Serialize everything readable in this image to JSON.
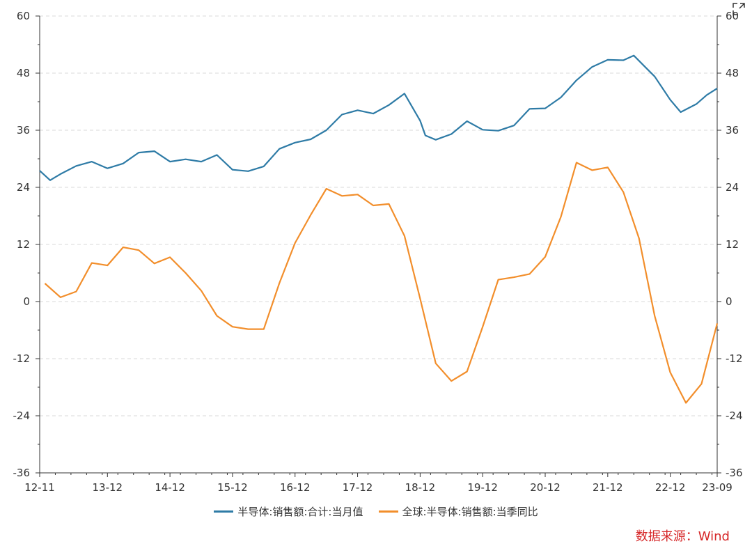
{
  "chart_data": {
    "type": "line",
    "x_labels": [
      "12-11",
      "13-12",
      "14-12",
      "15-12",
      "16-12",
      "17-12",
      "18-12",
      "19-12",
      "20-12",
      "21-12",
      "22-12",
      "23-09"
    ],
    "ylim": [
      -36,
      60
    ],
    "yticks": [
      -36,
      -24,
      -12,
      0,
      12,
      24,
      36,
      48,
      60
    ],
    "grid": true,
    "legend_position": "bottom",
    "series": [
      {
        "name": "半导体:销售额:合计:当月值",
        "color": "#2e7ba6",
        "points": [
          [
            "2012-11",
            27.5
          ],
          [
            "2013-01",
            25.5
          ],
          [
            "2013-03",
            26.8
          ],
          [
            "2013-06",
            28.5
          ],
          [
            "2013-09",
            29.4
          ],
          [
            "2013-12",
            28.0
          ],
          [
            "2014-03",
            29.0
          ],
          [
            "2014-06",
            31.3
          ],
          [
            "2014-09",
            31.6
          ],
          [
            "2014-12",
            29.4
          ],
          [
            "2015-03",
            29.9
          ],
          [
            "2015-06",
            29.4
          ],
          [
            "2015-09",
            30.8
          ],
          [
            "2015-12",
            27.7
          ],
          [
            "2016-03",
            27.4
          ],
          [
            "2016-06",
            28.4
          ],
          [
            "2016-09",
            32.1
          ],
          [
            "2016-12",
            33.4
          ],
          [
            "2017-03",
            34.1
          ],
          [
            "2017-06",
            36.0
          ],
          [
            "2017-09",
            39.3
          ],
          [
            "2017-12",
            40.2
          ],
          [
            "2018-03",
            39.5
          ],
          [
            "2018-06",
            41.3
          ],
          [
            "2018-09",
            43.7
          ],
          [
            "2018-12",
            38.0
          ],
          [
            "2019-01",
            34.9
          ],
          [
            "2019-03",
            34.0
          ],
          [
            "2019-06",
            35.2
          ],
          [
            "2019-09",
            37.9
          ],
          [
            "2019-12",
            36.1
          ],
          [
            "2020-03",
            35.9
          ],
          [
            "2020-06",
            37.0
          ],
          [
            "2020-09",
            40.5
          ],
          [
            "2020-12",
            40.6
          ],
          [
            "2021-03",
            42.9
          ],
          [
            "2021-06",
            46.5
          ],
          [
            "2021-09",
            49.3
          ],
          [
            "2021-12",
            50.8
          ],
          [
            "2022-03",
            50.7
          ],
          [
            "2022-05",
            51.7
          ],
          [
            "2022-07",
            49.5
          ],
          [
            "2022-09",
            47.3
          ],
          [
            "2022-12",
            42.4
          ],
          [
            "2023-02",
            39.8
          ],
          [
            "2023-05",
            41.5
          ],
          [
            "2023-07",
            43.4
          ],
          [
            "2023-09",
            44.8
          ]
        ]
      },
      {
        "name": "全球:半导体:销售额:当季同比",
        "color": "#f28e2b",
        "points": [
          [
            "2012-12",
            3.8
          ],
          [
            "2013-03",
            0.9
          ],
          [
            "2013-06",
            2.1
          ],
          [
            "2013-09",
            8.1
          ],
          [
            "2013-12",
            7.6
          ],
          [
            "2014-03",
            11.4
          ],
          [
            "2014-06",
            10.8
          ],
          [
            "2014-09",
            8.0
          ],
          [
            "2014-12",
            9.3
          ],
          [
            "2015-03",
            6.0
          ],
          [
            "2015-06",
            2.3
          ],
          [
            "2015-09",
            -3.0
          ],
          [
            "2015-12",
            -5.3
          ],
          [
            "2016-03",
            -5.8
          ],
          [
            "2016-06",
            -5.8
          ],
          [
            "2016-09",
            3.9
          ],
          [
            "2016-12",
            12.3
          ],
          [
            "2017-03",
            18.2
          ],
          [
            "2017-06",
            23.7
          ],
          [
            "2017-09",
            22.2
          ],
          [
            "2017-12",
            22.5
          ],
          [
            "2018-03",
            20.2
          ],
          [
            "2018-06",
            20.5
          ],
          [
            "2018-09",
            13.8
          ],
          [
            "2018-12",
            0.6
          ],
          [
            "2019-03",
            -13.0
          ],
          [
            "2019-06",
            -16.7
          ],
          [
            "2019-09",
            -14.7
          ],
          [
            "2019-12",
            -5.3
          ],
          [
            "2020-03",
            4.6
          ],
          [
            "2020-06",
            5.1
          ],
          [
            "2020-09",
            5.8
          ],
          [
            "2020-12",
            9.4
          ],
          [
            "2021-03",
            17.8
          ],
          [
            "2021-06",
            29.2
          ],
          [
            "2021-09",
            27.6
          ],
          [
            "2021-12",
            28.2
          ],
          [
            "2022-03",
            23.0
          ],
          [
            "2022-06",
            13.3
          ],
          [
            "2022-09",
            -3.0
          ],
          [
            "2022-12",
            -14.9
          ],
          [
            "2023-03",
            -21.3
          ],
          [
            "2023-06",
            -17.3
          ],
          [
            "2023-09",
            -4.6
          ]
        ]
      }
    ]
  },
  "source_text": "数据来源：Wind",
  "icons": {
    "expand": "expand-icon"
  }
}
